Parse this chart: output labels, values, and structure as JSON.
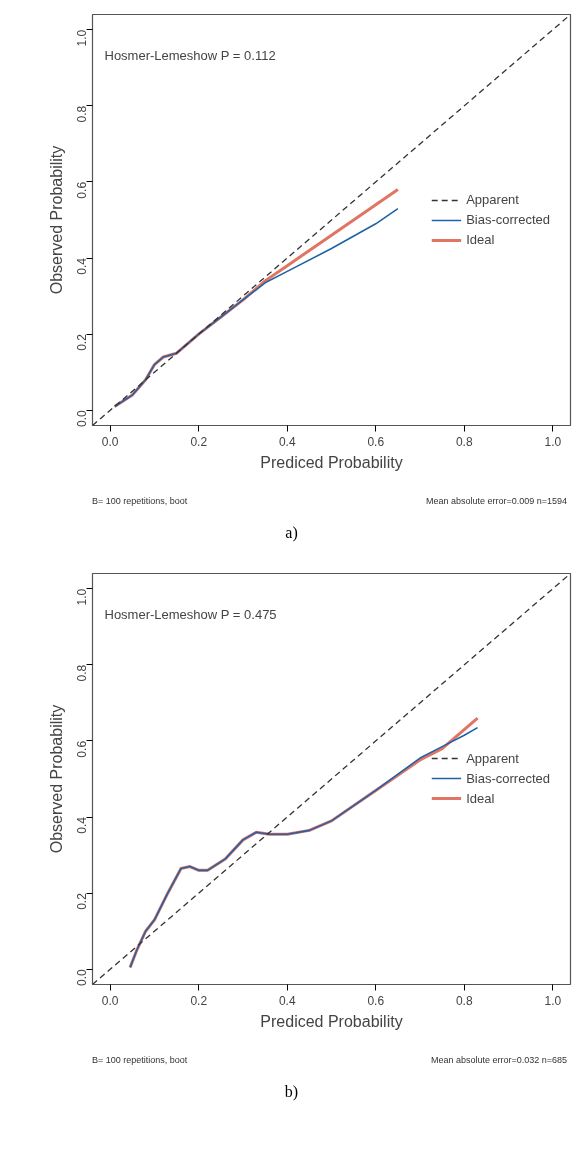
{
  "chart_data": [
    {
      "type": "line",
      "title": "a)",
      "xlabel": "Prediced Probability",
      "ylabel": "Observed Probability",
      "annotations": [
        "Hosmer-Lemeshow P = 0.112",
        "B= 100 repetitions, boot",
        "Mean absolute error=0.009 n=1594"
      ],
      "xlim": [
        -0.04,
        1.04
      ],
      "ylim": [
        -0.04,
        1.04
      ],
      "xticks": [
        {
          "value": 0,
          "label": "0.0"
        },
        {
          "value": 0.2,
          "label": "0.2"
        },
        {
          "value": 0.4,
          "label": "0.4"
        },
        {
          "value": 0.6,
          "label": "0.6"
        },
        {
          "value": 0.8,
          "label": "0.8"
        },
        {
          "value": 1,
          "label": "1.0"
        }
      ],
      "yticks": [
        {
          "value": 0,
          "label": "0.0"
        },
        {
          "value": 0.2,
          "label": "0.2"
        },
        {
          "value": 0.4,
          "label": "0.4"
        },
        {
          "value": 0.6,
          "label": "0.6"
        },
        {
          "value": 0.8,
          "label": "0.8"
        },
        {
          "value": 1,
          "label": "1.0"
        }
      ],
      "grid": false,
      "legend": "right",
      "series": [
        {
          "name": "Apparent",
          "color": "#333333",
          "line_style": "dashed",
          "x": [
            -0.04,
            1.04
          ],
          "values": [
            -0.04,
            1.04
          ]
        },
        {
          "name": "Bias-corrected",
          "color": "#1f63a6",
          "line_style": "solid",
          "x": [
            0.01,
            0.05,
            0.08,
            0.1,
            0.12,
            0.15,
            0.2,
            0.25,
            0.3,
            0.35,
            0.4,
            0.5,
            0.6,
            0.65
          ],
          "values": [
            0.01,
            0.04,
            0.08,
            0.12,
            0.14,
            0.15,
            0.2,
            0.245,
            0.29,
            0.335,
            0.365,
            0.425,
            0.49,
            0.53
          ]
        },
        {
          "name": "Ideal",
          "color": "#e07563",
          "line_style": "solid",
          "x": [
            0.01,
            0.05,
            0.08,
            0.1,
            0.12,
            0.15,
            0.2,
            0.25,
            0.3,
            0.35,
            0.4,
            0.5,
            0.6,
            0.65
          ],
          "values": [
            0.01,
            0.04,
            0.08,
            0.12,
            0.14,
            0.15,
            0.2,
            0.245,
            0.29,
            0.34,
            0.38,
            0.46,
            0.54,
            0.58
          ]
        }
      ]
    },
    {
      "type": "line",
      "title": "b)",
      "xlabel": "Prediced Probability",
      "ylabel": "Observed Probability",
      "annotations": [
        "Hosmer-Lemeshow P = 0.475",
        "B= 100 repetitions, boot",
        "Mean absolute error=0.032 n=685"
      ],
      "xlim": [
        -0.04,
        1.04
      ],
      "ylim": [
        -0.04,
        1.04
      ],
      "xticks": [
        {
          "value": 0,
          "label": "0.0"
        },
        {
          "value": 0.2,
          "label": "0.2"
        },
        {
          "value": 0.4,
          "label": "0.4"
        },
        {
          "value": 0.6,
          "label": "0.6"
        },
        {
          "value": 0.8,
          "label": "0.8"
        },
        {
          "value": 1,
          "label": "1.0"
        }
      ],
      "yticks": [
        {
          "value": 0,
          "label": "0.0"
        },
        {
          "value": 0.2,
          "label": "0.2"
        },
        {
          "value": 0.4,
          "label": "0.4"
        },
        {
          "value": 0.6,
          "label": "0.6"
        },
        {
          "value": 0.8,
          "label": "0.8"
        },
        {
          "value": 1,
          "label": "1.0"
        }
      ],
      "grid": false,
      "legend": "right",
      "series": [
        {
          "name": "Apparent",
          "color": "#333333",
          "line_style": "dashed",
          "x": [
            -0.04,
            1.04
          ],
          "values": [
            -0.04,
            1.04
          ]
        },
        {
          "name": "Bias-corrected",
          "color": "#1f63a6",
          "line_style": "solid",
          "x": [
            0.045,
            0.06,
            0.08,
            0.1,
            0.13,
            0.16,
            0.18,
            0.2,
            0.22,
            0.26,
            0.3,
            0.33,
            0.36,
            0.4,
            0.45,
            0.5,
            0.6,
            0.7,
            0.75,
            0.8,
            0.83
          ],
          "values": [
            0.005,
            0.05,
            0.1,
            0.13,
            0.2,
            0.265,
            0.27,
            0.26,
            0.26,
            0.29,
            0.34,
            0.36,
            0.355,
            0.355,
            0.365,
            0.39,
            0.47,
            0.555,
            0.585,
            0.615,
            0.635
          ]
        },
        {
          "name": "Ideal",
          "color": "#e07563",
          "line_style": "solid",
          "x": [
            0.045,
            0.06,
            0.08,
            0.1,
            0.13,
            0.16,
            0.18,
            0.2,
            0.22,
            0.26,
            0.3,
            0.33,
            0.36,
            0.4,
            0.45,
            0.5,
            0.6,
            0.7,
            0.75,
            0.83
          ],
          "values": [
            0.005,
            0.05,
            0.1,
            0.13,
            0.2,
            0.265,
            0.27,
            0.26,
            0.26,
            0.29,
            0.34,
            0.36,
            0.355,
            0.355,
            0.365,
            0.39,
            0.47,
            0.55,
            0.58,
            0.66
          ]
        }
      ]
    }
  ]
}
